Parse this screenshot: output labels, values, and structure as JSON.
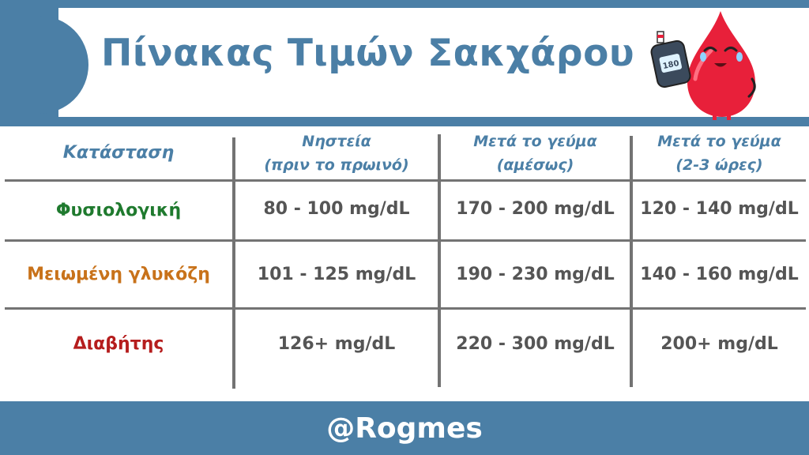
{
  "title": "Πίνακας Τιμών Σακχάρου",
  "mascot": {
    "icon": "blood-drop-glucometer-icon",
    "meter_reading": "180"
  },
  "table": {
    "headers": [
      {
        "lines": [
          "Κατάσταση"
        ]
      },
      {
        "lines": [
          "Νηστεία",
          "(πριν το πρωινό)"
        ]
      },
      {
        "lines": [
          "Μετά το γεύμα",
          "(αμέσως)"
        ]
      },
      {
        "lines": [
          "Μετά το γεύμα",
          "(2-3 ώρες)"
        ]
      }
    ],
    "rows": [
      {
        "status": "Φυσιολογική",
        "color": "#1f7a2e",
        "values": [
          "80 - 100 mg/dL",
          "170 - 200 mg/dL",
          "120 - 140 mg/dL"
        ]
      },
      {
        "status": "Μειωμένη γλυκόζη",
        "color": "#c8721a",
        "values": [
          "101 - 125 mg/dL",
          "190 - 230 mg/dL",
          "140 - 160 mg/dL"
        ]
      },
      {
        "status": "Διαβήτης",
        "color": "#b51d1d",
        "values": [
          "126+ mg/dL",
          "220 - 300 mg/dL",
          "200+ mg/dL"
        ]
      }
    ]
  },
  "footer": {
    "handle": "@Rogmes"
  },
  "colors": {
    "brand": "#4b7fa6",
    "grid": "#737373",
    "value_text": "#555555",
    "drop": "#e8203a"
  }
}
